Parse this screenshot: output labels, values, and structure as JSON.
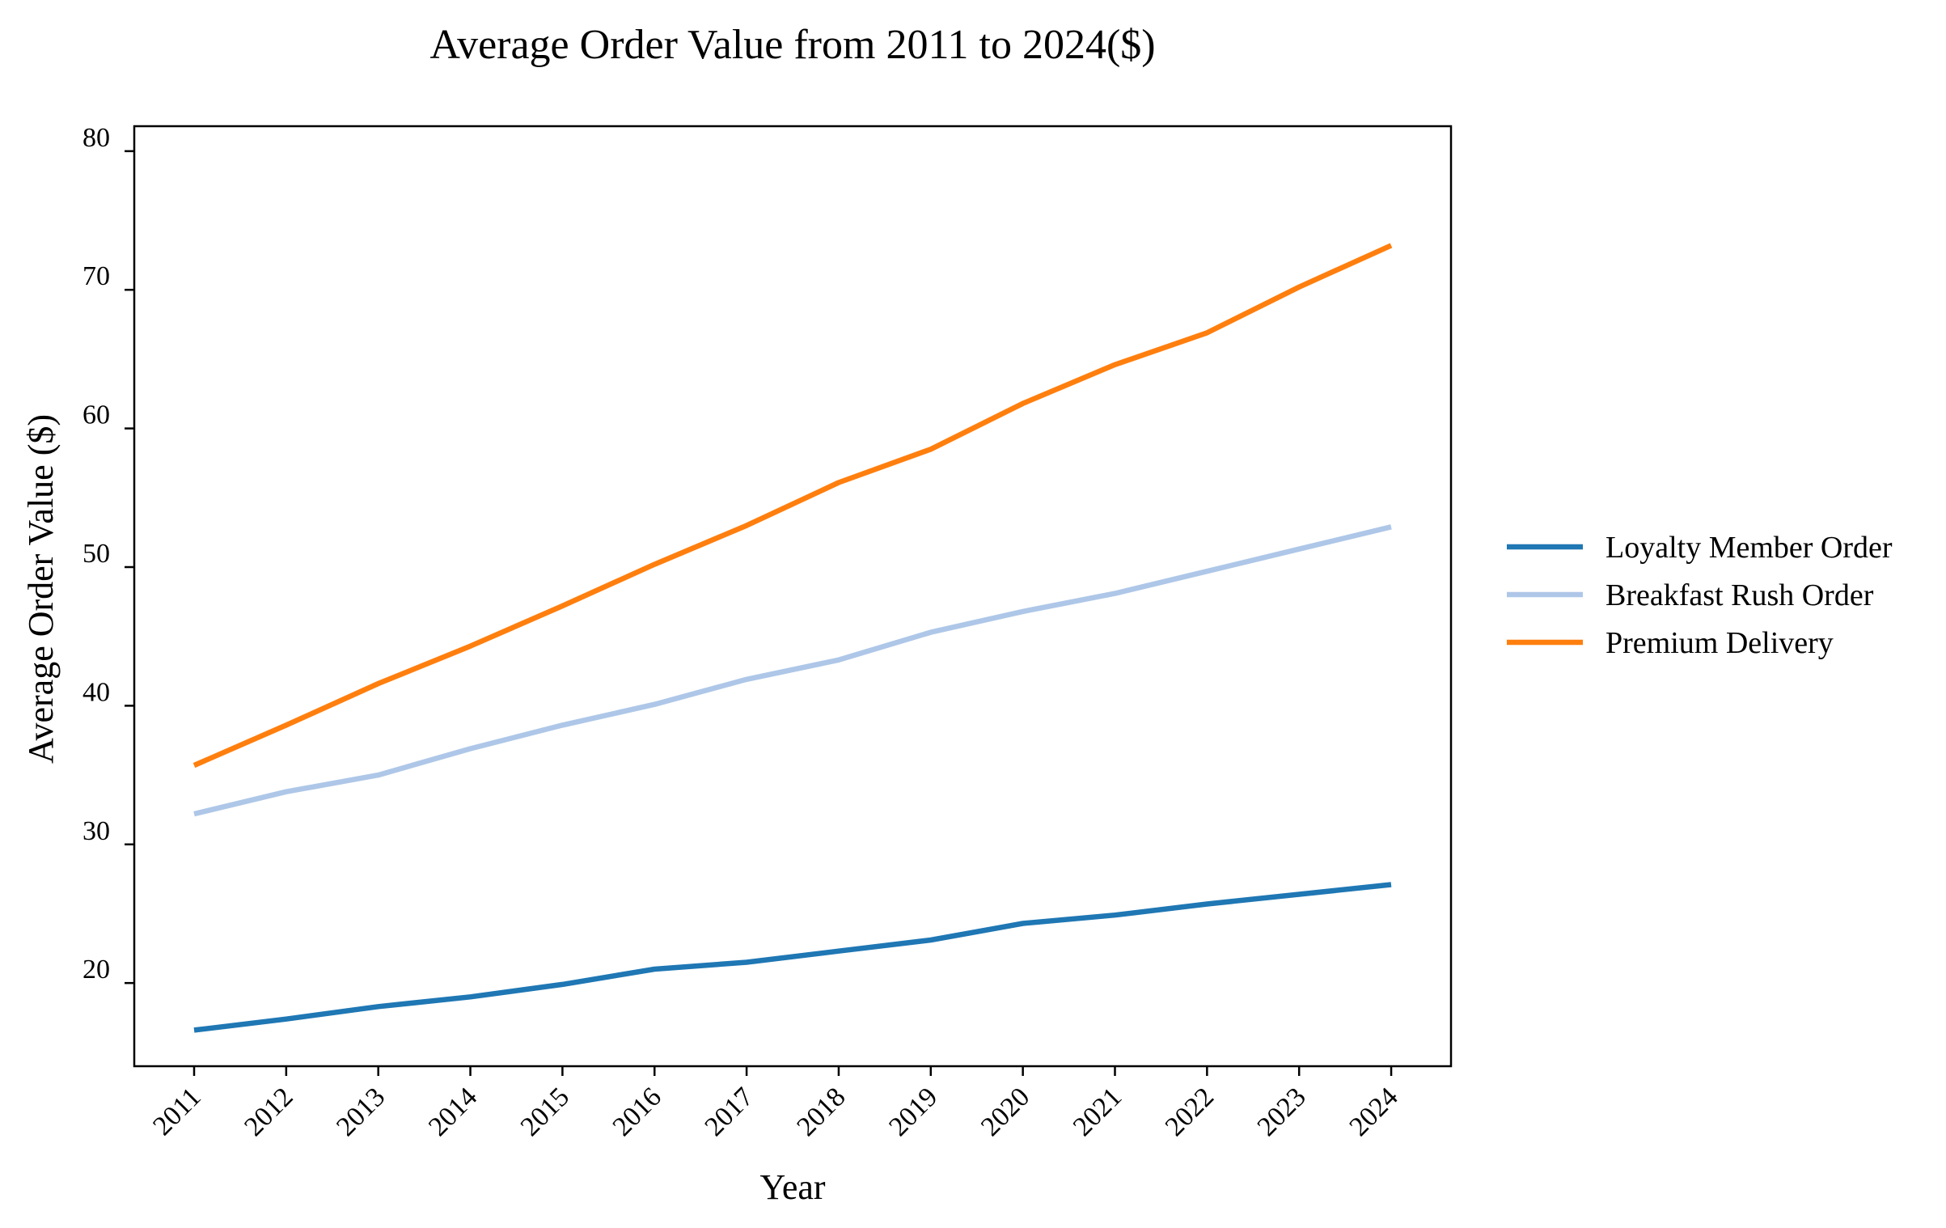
{
  "chart_data": {
    "type": "line",
    "title": "Average Order Value from 2011 to 2024($)",
    "xlabel": "Year",
    "ylabel": "Average Order Value ($)",
    "categories": [
      "2011",
      "2012",
      "2013",
      "2014",
      "2015",
      "2016",
      "2017",
      "2018",
      "2019",
      "2020",
      "2021",
      "2022",
      "2023",
      "2024"
    ],
    "yticks": [
      "20",
      "30",
      "40",
      "50",
      "60",
      "70",
      "80"
    ],
    "ylim": [
      14,
      81.8
    ],
    "grid": false,
    "legend_position": "right",
    "series": [
      {
        "name": "Loyalty Member Order",
        "color": "#1f77b4",
        "values": [
          16.6,
          17.4,
          18.3,
          19.0,
          19.9,
          21.0,
          21.5,
          22.3,
          23.1,
          24.3,
          24.9,
          25.7,
          26.4,
          27.1
        ]
      },
      {
        "name": "Breakfast Rush Order",
        "color": "#aec7e8",
        "values": [
          32.2,
          33.8,
          35.0,
          36.9,
          38.6,
          40.1,
          41.9,
          43.3,
          45.3,
          46.8,
          48.1,
          49.7,
          51.3,
          52.9
        ]
      },
      {
        "name": "Premium Delivery",
        "color": "#ff7f0e",
        "values": [
          35.7,
          38.6,
          41.6,
          44.3,
          47.2,
          50.2,
          53.0,
          56.1,
          58.5,
          61.8,
          64.6,
          66.9,
          70.2,
          73.2
        ]
      }
    ]
  }
}
